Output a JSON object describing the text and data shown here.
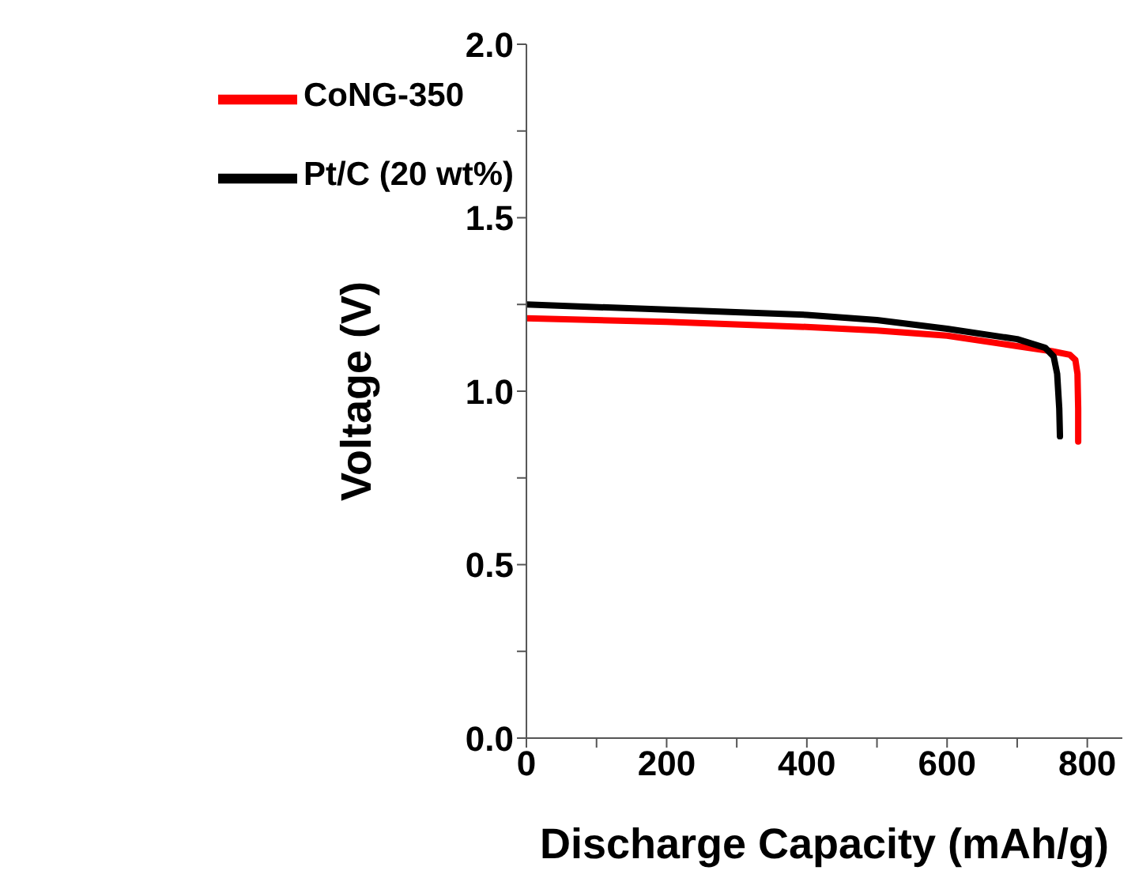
{
  "chart_data": {
    "type": "line",
    "xlabel": "Discharge Capacity (mAh/g)",
    "ylabel": "Voltage (V)",
    "xlim": [
      0,
      850
    ],
    "xticks": [
      0,
      {
        "value": 100,
        "label": null
      },
      200,
      {
        "value": 300,
        "label": null
      },
      400,
      {
        "value": 500,
        "label": null
      },
      600,
      {
        "value": 700,
        "label": null
      },
      800
    ],
    "ylim": [
      0,
      2
    ],
    "yticks": [
      {
        "value": 0,
        "label": "0.0"
      },
      {
        "value": 0.25,
        "label": null
      },
      {
        "value": 0.5,
        "label": "0.5"
      },
      {
        "value": 0.75,
        "label": null
      },
      {
        "value": 1,
        "label": "1.0"
      },
      {
        "value": 1.25,
        "label": null
      },
      {
        "value": 1.5,
        "label": "1.5"
      },
      {
        "value": 1.75,
        "label": null
      },
      {
        "value": 2,
        "label": "2.0"
      }
    ],
    "legend": "top left",
    "grid": false,
    "marker": "none",
    "line_style": "solid",
    "series": [
      {
        "name": "CoNG-350",
        "color": "#ff0000",
        "x": [
          0,
          200,
          400,
          500,
          600,
          700,
          750,
          775,
          783,
          786,
          787,
          787
        ],
        "values": [
          1.21,
          1.2,
          1.185,
          1.175,
          1.16,
          1.13,
          1.115,
          1.105,
          1.09,
          1.05,
          0.95,
          0.855
        ]
      },
      {
        "name": "Pt/C (20 wt%)",
        "color": "#000000",
        "x": [
          0,
          200,
          400,
          500,
          600,
          700,
          740,
          752,
          757,
          760,
          761
        ],
        "values": [
          1.25,
          1.235,
          1.22,
          1.205,
          1.18,
          1.15,
          1.125,
          1.1,
          1.05,
          0.95,
          0.87
        ]
      }
    ]
  }
}
